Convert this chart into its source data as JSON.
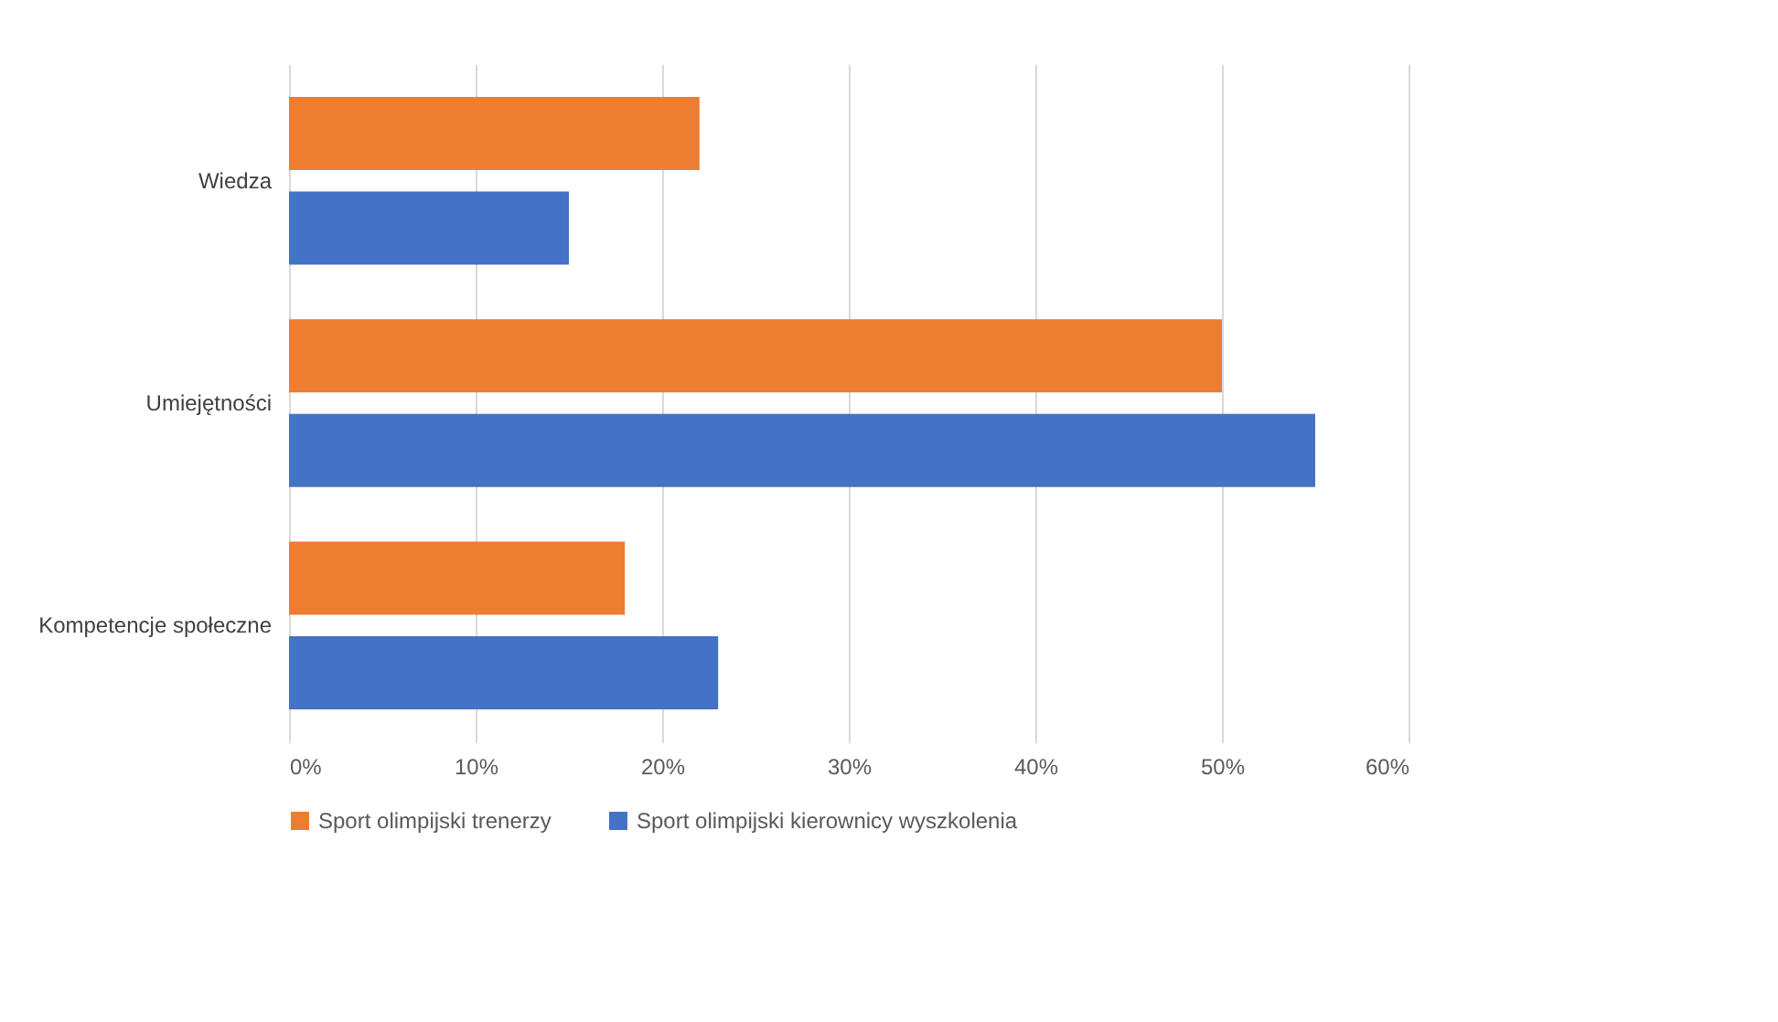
{
  "chart_data": {
    "type": "bar",
    "orientation": "horizontal",
    "categories": [
      "Wiedza",
      "Umiejętności",
      "Kompetencje społeczne"
    ],
    "series": [
      {
        "name": "Sport olimpijski trenerzy",
        "color": "#ed7d31",
        "values": [
          22,
          50,
          18
        ]
      },
      {
        "name": "Sport olimpijski kierownicy wyszkolenia",
        "color": "#4472c4",
        "values": [
          15,
          55,
          23
        ]
      }
    ],
    "xlim": [
      0,
      60
    ],
    "xticks": [
      {
        "value": 0,
        "label": "0%"
      },
      {
        "value": 10,
        "label": "10%"
      },
      {
        "value": 20,
        "label": "20%"
      },
      {
        "value": 30,
        "label": "30%"
      },
      {
        "value": 40,
        "label": "40%"
      },
      {
        "value": 50,
        "label": "50%"
      },
      {
        "value": 60,
        "label": "60%"
      }
    ],
    "grid": "x",
    "legend": "bottom"
  }
}
